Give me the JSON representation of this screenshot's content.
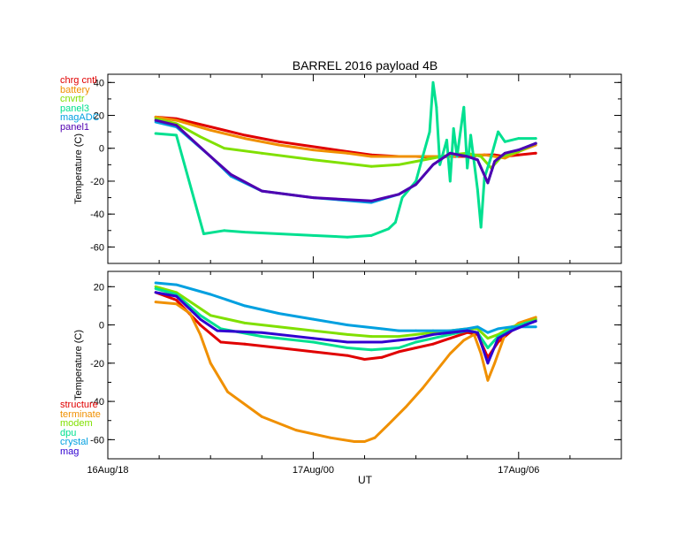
{
  "chart_data": {
    "type": "line",
    "title": "BARREL 2016 payload 4B",
    "xlabel": "UT",
    "x_ticks": [
      "16Aug/18",
      "17Aug/00",
      "17Aug/06"
    ],
    "x_unit": "hours since 16Aug 18:00",
    "xlim": [
      0,
      15
    ],
    "panels": [
      {
        "ylabel": "Temperature (C)",
        "ylim": [
          -70,
          45
        ],
        "yticks": [
          -60,
          -40,
          -20,
          0,
          20,
          40
        ],
        "legend_position": "top-left",
        "series": [
          {
            "name": "chrg cntl",
            "color": "#e00000",
            "x": [
              1.4,
              2.0,
              3.0,
              4.0,
              5.0,
              6.0,
              7.0,
              7.7,
              8.5,
              9.0,
              9.5,
              10.0,
              10.5,
              11.0,
              11.3,
              11.6,
              12.0,
              12.5
            ],
            "y": [
              19,
              18,
              13,
              8,
              4,
              1,
              -2,
              -4,
              -5,
              -5,
              -5.5,
              -5,
              -5,
              -4,
              -4,
              -5,
              -4,
              -3
            ]
          },
          {
            "name": "battery",
            "color": "#f09000",
            "x": [
              1.4,
              2.0,
              3.0,
              4.0,
              5.0,
              6.0,
              7.0,
              7.7,
              8.5,
              9.0,
              9.5,
              10.0,
              10.5,
              11.0,
              11.3,
              11.6,
              12.0,
              12.5
            ],
            "y": [
              19,
              17,
              11,
              6,
              2,
              -1,
              -3,
              -5,
              -5,
              -5,
              -5,
              -5,
              -4,
              -4,
              -5,
              -6,
              -2,
              2
            ]
          },
          {
            "name": "cnvrtr",
            "color": "#80e000",
            "x": [
              1.4,
              2.0,
              2.7,
              3.4,
              4.5,
              6.0,
              7.7,
              8.5,
              9.0,
              9.5,
              10.0,
              10.5,
              10.9,
              11.2,
              11.5,
              12.0,
              12.5
            ],
            "y": [
              18,
              15,
              7,
              0,
              -3,
              -7,
              -11,
              -10,
              -8,
              -6,
              -4,
              -3,
              -5,
              -12,
              -5,
              -2,
              3
            ]
          },
          {
            "name": "panel3",
            "color": "#00e090",
            "x": [
              1.4,
              2.0,
              2.8,
              3.4,
              4.0,
              5.0,
              6.0,
              7.0,
              7.7,
              8.2,
              8.4,
              8.6,
              9.0,
              9.2,
              9.4,
              9.5,
              9.6,
              9.7,
              9.9,
              10.0,
              10.1,
              10.2,
              10.4,
              10.5,
              10.6,
              10.8,
              10.9,
              11.0,
              11.2,
              11.4,
              11.6,
              12.0,
              12.5
            ],
            "y": [
              9,
              8,
              -52,
              -50,
              -51,
              -52,
              -53,
              -54,
              -53,
              -49,
              -45,
              -30,
              -20,
              -5,
              10,
              40,
              25,
              -10,
              5,
              -20,
              12,
              -5,
              25,
              -12,
              8,
              -25,
              -48,
              -18,
              -5,
              10,
              4,
              6,
              6
            ]
          },
          {
            "name": "magADC",
            "color": "#00a0e0",
            "x": [
              1.4,
              2.0,
              3.0,
              3.6,
              4.5,
              6.0,
              7.7,
              8.5,
              9.0,
              9.5,
              10.0,
              10.5,
              10.8,
              11.1,
              11.3,
              11.6,
              12.0,
              12.5
            ],
            "y": [
              16,
              13,
              -5,
              -17,
              -26,
              -30,
              -33,
              -28,
              -22,
              -10,
              -3,
              -5,
              -7,
              -21,
              -8,
              -3,
              -1,
              3
            ]
          },
          {
            "name": "panel1",
            "color": "#5000b0",
            "x": [
              1.4,
              2.0,
              3.0,
              3.6,
              4.5,
              6.0,
              7.7,
              8.5,
              9.0,
              9.5,
              10.0,
              10.5,
              10.8,
              11.1,
              11.3,
              11.6,
              12.0,
              12.5
            ],
            "y": [
              17,
              14,
              -5,
              -16,
              -26,
              -30,
              -32,
              -28,
              -22,
              -10,
              -3,
              -5,
              -7,
              -21,
              -8,
              -3,
              -1,
              3
            ]
          }
        ]
      },
      {
        "ylabel": "Temperature (C)",
        "ylim": [
          -70,
          28
        ],
        "yticks": [
          -60,
          -40,
          -20,
          0,
          20
        ],
        "legend_position": "bottom-left",
        "series": [
          {
            "name": "structure",
            "color": "#e00000",
            "x": [
              1.4,
              2.0,
              2.7,
              3.3,
              4.0,
              5.0,
              6.0,
              7.0,
              7.5,
              8.0,
              8.5,
              9.0,
              9.5,
              10.0,
              10.5,
              10.8,
              11.1,
              11.4,
              11.8,
              12.2,
              12.5
            ],
            "y": [
              17,
              13,
              0,
              -9,
              -10,
              -12,
              -14,
              -16,
              -18,
              -17,
              -14,
              -12,
              -10,
              -7,
              -4,
              -5,
              -17,
              -9,
              -3,
              1,
              3
            ]
          },
          {
            "name": "terminate",
            "color": "#f09000",
            "x": [
              1.4,
              2.0,
              2.4,
              2.7,
              3.0,
              3.5,
              4.5,
              5.5,
              6.5,
              7.2,
              7.5,
              7.8,
              8.2,
              8.7,
              9.2,
              9.6,
              10.0,
              10.4,
              10.7,
              10.9,
              11.1,
              11.3,
              11.6,
              12.0,
              12.5
            ],
            "y": [
              12,
              11,
              6,
              -5,
              -20,
              -35,
              -48,
              -55,
              -59,
              -61,
              -61,
              -59,
              -52,
              -43,
              -33,
              -24,
              -15,
              -8,
              -5,
              -15,
              -29,
              -20,
              -5,
              1,
              4
            ]
          },
          {
            "name": "modem",
            "color": "#80e000",
            "x": [
              1.4,
              2.0,
              3.0,
              4.0,
              5.0,
              6.0,
              7.0,
              7.7,
              8.5,
              9.0,
              9.5,
              10.0,
              10.5,
              10.8,
              11.1,
              11.4,
              11.8,
              12.2,
              12.5
            ],
            "y": [
              20,
              17,
              5,
              1,
              -1,
              -3,
              -5,
              -6,
              -6,
              -5,
              -4,
              -3,
              -2,
              -2,
              -7,
              -5,
              -1,
              1,
              3
            ]
          },
          {
            "name": "dpu",
            "color": "#00e090",
            "x": [
              1.4,
              2.0,
              2.7,
              3.3,
              4.5,
              6.0,
              7.0,
              7.7,
              8.5,
              9.0,
              9.5,
              10.0,
              10.5,
              10.8,
              11.1,
              11.4,
              11.8,
              12.2,
              12.5
            ],
            "y": [
              19,
              16,
              5,
              -2,
              -6,
              -9,
              -12,
              -13,
              -12,
              -9,
              -7,
              -5,
              -3,
              -4,
              -12,
              -6,
              -2,
              1,
              2
            ]
          },
          {
            "name": "crystal",
            "color": "#00a0e0",
            "x": [
              1.4,
              2.0,
              3.0,
              4.0,
              5.0,
              6.0,
              7.0,
              8.0,
              8.5,
              9.0,
              9.5,
              10.0,
              10.5,
              10.8,
              11.1,
              11.4,
              11.8,
              12.2,
              12.5
            ],
            "y": [
              22,
              21,
              16,
              10,
              6,
              3,
              0,
              -2,
              -3,
              -3,
              -3,
              -3,
              -2,
              -1,
              -4,
              -2,
              -1,
              -1,
              -1
            ]
          },
          {
            "name": "mag",
            "color": "#3000d0",
            "x": [
              1.4,
              2.0,
              2.7,
              3.2,
              4.5,
              6.0,
              7.0,
              8.0,
              8.5,
              9.0,
              9.5,
              10.0,
              10.5,
              10.8,
              11.1,
              11.4,
              11.8,
              12.2,
              12.5
            ],
            "y": [
              17,
              15,
              3,
              -3,
              -4,
              -7,
              -9,
              -9,
              -8,
              -7,
              -5,
              -4,
              -3,
              -4,
              -20,
              -7,
              -3,
              0,
              2
            ]
          }
        ]
      }
    ]
  }
}
